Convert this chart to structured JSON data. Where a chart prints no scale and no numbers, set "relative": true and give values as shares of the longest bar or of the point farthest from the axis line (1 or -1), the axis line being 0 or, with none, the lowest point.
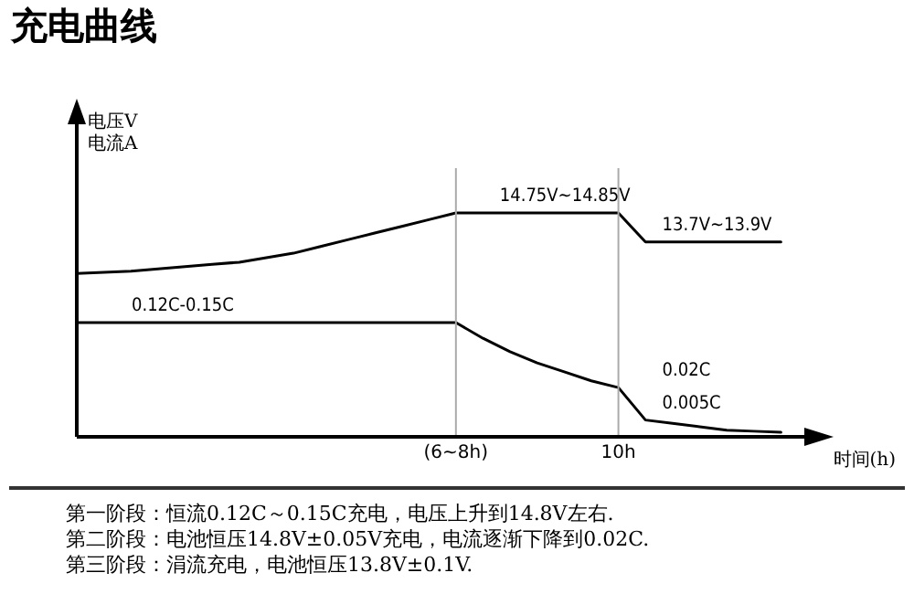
{
  "chart_data": {
    "type": "line",
    "title": "充电曲线",
    "ylabel": "电压V\n电流A",
    "xlabel": "时间(h)",
    "relative": true,
    "legend": false,
    "grid": false,
    "marker": "none",
    "line_style": "solid",
    "categories": [
      null,
      null,
      null,
      null,
      null,
      null,
      null,
      null,
      null,
      null,
      null,
      null,
      null,
      null,
      "(6~8h)",
      null,
      null,
      null,
      null,
      null,
      "10h",
      null,
      null,
      null,
      null,
      null,
      null,
      null
    ],
    "series": [
      {
        "color": "#000000",
        "values": [
          0.73,
          0.735,
          0.74,
          0.75,
          0.76,
          0.77,
          0.78,
          0.8,
          0.82,
          0.85,
          0.88,
          0.91,
          0.94,
          0.97,
          1,
          1,
          1,
          1,
          1,
          1,
          1,
          0.87,
          0.87,
          0.87,
          0.87,
          0.87,
          0.87,
          null
        ]
      },
      {
        "color": "#000000",
        "values": [
          0.51,
          0.51,
          0.51,
          0.51,
          0.51,
          0.51,
          0.51,
          0.51,
          0.51,
          0.51,
          0.51,
          0.51,
          0.51,
          0.51,
          0.51,
          0.44,
          0.38,
          0.33,
          0.29,
          0.25,
          0.22,
          0.075,
          0.06,
          0.045,
          0.03,
          0.025,
          0.02,
          null
        ]
      }
    ],
    "ref_lines": [
      {
        "axis": "x",
        "value": "(6~8h)",
        "color": "#aaaaaa"
      },
      {
        "axis": "x",
        "value": "10h",
        "color": "#aaaaaa"
      }
    ],
    "annotations": [
      {
        "text": "14.75V~14.85V",
        "x": "(6~8h)",
        "y": 1
      },
      {
        "text": "13.7V~13.9V",
        "x": "10h",
        "y": 0.87
      },
      {
        "text": "0.12C-0.15C",
        "y": 0.51
      },
      {
        "text": "0.02C",
        "x": "10h",
        "y": 0.22
      },
      {
        "text": "0.005C",
        "x": "10h",
        "y": 0.075
      },
      "第一阶段：恒流0.12C～0.15C充电，电压上升到14.8V左右.",
      "第二阶段：电池恒压14.8V±0.05V充电，电流逐渐下降到0.02C.",
      "第三阶段：涓流充电，电池恒压13.8V±0.1V."
    ]
  }
}
